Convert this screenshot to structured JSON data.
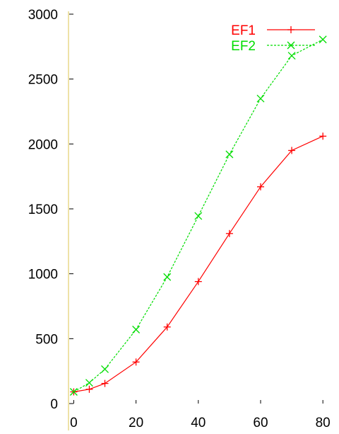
{
  "chart_data": {
    "type": "line",
    "title": "",
    "xlabel": "",
    "ylabel": "",
    "xlim": [
      -1,
      82
    ],
    "ylim": [
      0,
      3000
    ],
    "xticks": [
      0,
      20,
      40,
      60,
      80
    ],
    "yticks": [
      0,
      500,
      1000,
      1500,
      2000,
      2500,
      3000
    ],
    "grid": false,
    "legend_position": "top-right",
    "series": [
      {
        "name": "EF1",
        "color": "#ff0000",
        "marker": "plus",
        "line_style": "solid",
        "x": [
          0,
          5,
          10,
          20,
          30,
          40,
          50,
          60,
          70,
          80
        ],
        "y": [
          90,
          110,
          155,
          320,
          590,
          940,
          1310,
          1670,
          1950,
          2060
        ]
      },
      {
        "name": "EF2",
        "color": "#00dd00",
        "marker": "x",
        "line_style": "dashed",
        "x": [
          0,
          5,
          10,
          20,
          30,
          40,
          50,
          60,
          70,
          80
        ],
        "y": [
          90,
          160,
          265,
          570,
          975,
          1445,
          1920,
          2350,
          2680,
          2805
        ]
      }
    ]
  }
}
